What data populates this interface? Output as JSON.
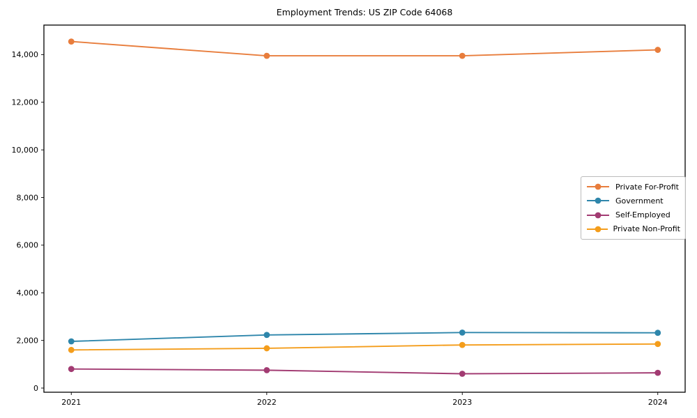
{
  "chart_data": {
    "type": "line",
    "title": "Employment Trends: US ZIP Code 64068",
    "xlabel": "",
    "ylabel": "",
    "x": [
      2021,
      2022,
      2023,
      2024
    ],
    "x_tick_labels": [
      "2021",
      "2022",
      "2023",
      "2024"
    ],
    "y_tick_values": [
      0,
      2000,
      4000,
      6000,
      8000,
      10000,
      12000,
      14000
    ],
    "y_tick_labels": [
      "0",
      "2,000",
      "4,000",
      "6,000",
      "8,000",
      "10,000",
      "12,000",
      "14,000"
    ],
    "xlim": [
      2020.86,
      2024.14
    ],
    "ylim": [
      -175,
      15240
    ],
    "grid": false,
    "legend_position": "center right",
    "series": [
      {
        "name": "Private For-Profit",
        "color": "#E87D3C",
        "values": [
          14550,
          13950,
          13950,
          14200
        ]
      },
      {
        "name": "Government",
        "color": "#2E86AB",
        "values": [
          1960,
          2230,
          2330,
          2320
        ]
      },
      {
        "name": "Self-Employed",
        "color": "#A23B72",
        "values": [
          800,
          750,
          600,
          640
        ]
      },
      {
        "name": "Private Non-Profit",
        "color": "#F49D1B",
        "values": [
          1600,
          1670,
          1810,
          1850
        ]
      }
    ]
  }
}
